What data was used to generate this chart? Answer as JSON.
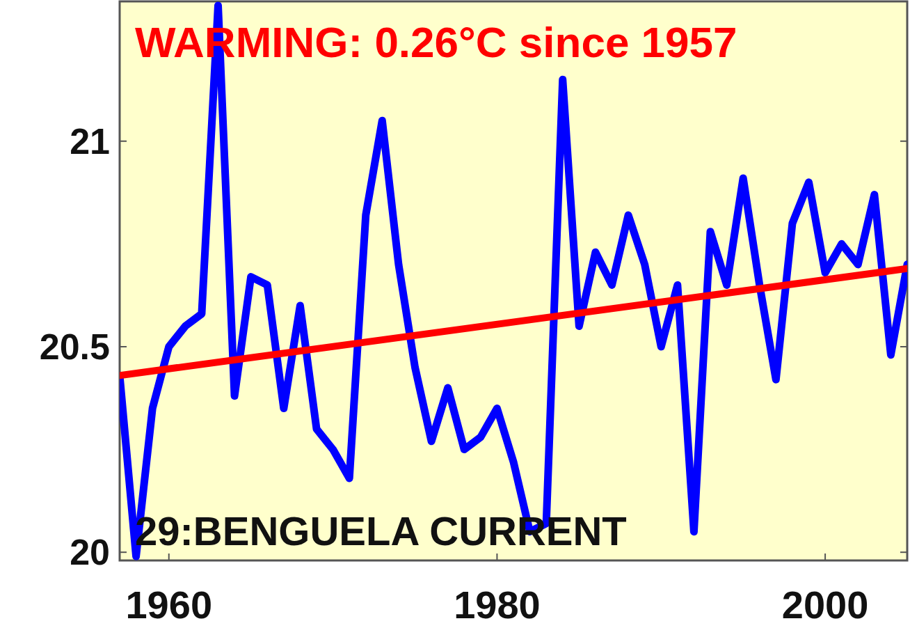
{
  "chart_data": {
    "type": "line",
    "title": "WARMING: 0.26°C since 1957",
    "annotations": [
      "29:BENGUELA CURRENT"
    ],
    "x": [
      1957,
      1958,
      1959,
      1960,
      1961,
      1962,
      1963,
      1964,
      1965,
      1966,
      1967,
      1968,
      1969,
      1970,
      1971,
      1972,
      1973,
      1974,
      1975,
      1976,
      1977,
      1978,
      1979,
      1980,
      1981,
      1982,
      1983,
      1984,
      1985,
      1986,
      1987,
      1988,
      1989,
      1990,
      1991,
      1992,
      1993,
      1994,
      1995,
      1996,
      1997,
      1998,
      1999,
      2000,
      2001,
      2002,
      2003,
      2004,
      2005
    ],
    "series": [
      {
        "color": "#0000ff",
        "values": [
          20.43,
          19.99,
          20.35,
          20.5,
          20.55,
          20.58,
          21.33,
          20.38,
          20.67,
          20.65,
          20.35,
          20.6,
          20.3,
          20.25,
          20.18,
          20.82,
          21.05,
          20.7,
          20.45,
          20.27,
          20.4,
          20.25,
          20.28,
          20.35,
          20.22,
          20.05,
          20.07,
          21.15,
          20.55,
          20.73,
          20.65,
          20.82,
          20.7,
          20.5,
          20.65,
          20.05,
          20.78,
          20.65,
          20.91,
          20.65,
          20.42,
          20.8,
          20.9,
          20.68,
          20.75,
          20.7,
          20.87,
          20.48,
          20.7
        ]
      },
      {
        "type": "line",
        "color": "#ff0000",
        "x": [
          1957,
          2005
        ],
        "values": [
          20.43,
          20.69
        ]
      }
    ],
    "xlim": [
      1957,
      2005
    ],
    "ylim": [
      19.98,
      21.34
    ],
    "xticks": [
      1960,
      1980,
      2000
    ],
    "yticks": [
      20,
      20.5,
      21
    ],
    "grid": false
  }
}
